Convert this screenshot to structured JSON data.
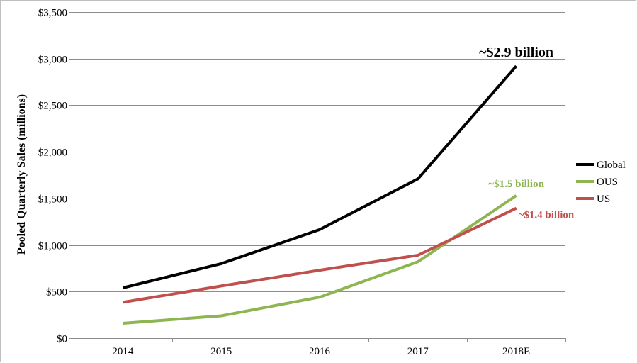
{
  "chart_data": {
    "type": "line",
    "title": "",
    "xlabel": "",
    "ylabel": "Pooled Quarterly Sales (millions)",
    "ylim": [
      0,
      3500
    ],
    "y_ticks": [
      0,
      500,
      1000,
      1500,
      2000,
      2500,
      3000,
      3500
    ],
    "y_tick_labels": [
      "$0",
      "$500",
      "$1,000",
      "$1,500",
      "$2,000",
      "$2,500",
      "$3,000",
      "$3,500"
    ],
    "categories": [
      "2014",
      "2015",
      "2016",
      "2017",
      "2018E"
    ],
    "grid": "horizontal",
    "legend_position": "right",
    "series": [
      {
        "name": "Global",
        "color": "#000000",
        "values": [
          540,
          800,
          1165,
          1710,
          2920
        ]
      },
      {
        "name": "OUS",
        "color": "#8db552",
        "values": [
          160,
          240,
          440,
          820,
          1530
        ]
      },
      {
        "name": "US",
        "color": "#c0504d",
        "values": [
          385,
          560,
          730,
          890,
          1395
        ]
      }
    ],
    "annotations": [
      {
        "text": "~$2.9 billion",
        "series": "Global",
        "color": "#000000"
      },
      {
        "text": "~$1.5 billion",
        "series": "OUS",
        "color": "#8db552"
      },
      {
        "text": "~$1.4 billion",
        "series": "US",
        "color": "#c0504d"
      }
    ]
  }
}
